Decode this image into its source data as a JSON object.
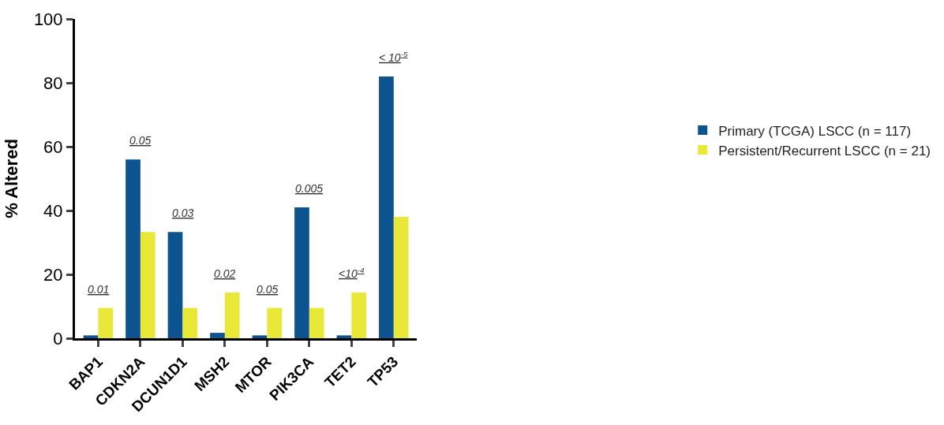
{
  "chart_data": {
    "type": "bar",
    "ylabel": "% Altered",
    "categories": [
      "BAP1",
      "CDKN2A",
      "DCUN1D1",
      "MSH2",
      "MTOR",
      "PIK3CA",
      "TET2",
      "TP53"
    ],
    "series": [
      {
        "name": "Primary (TCGA) LSCC (n = 117)",
        "color": "#0c5390",
        "values": [
          0.9,
          56,
          33.3,
          1.7,
          0.9,
          41,
          0.9,
          82
        ]
      },
      {
        "name": "Persistent/Recurrent LSCC (n = 21)",
        "color": "#e9e838",
        "values": [
          9.5,
          33.3,
          9.5,
          14.3,
          9.5,
          9.5,
          14.3,
          38
        ]
      }
    ],
    "ylim": [
      0,
      100
    ],
    "yticks": [
      0,
      20,
      40,
      60,
      80,
      100
    ],
    "legend": "right",
    "annotations": [
      "0.01",
      "0.05",
      "0.03",
      "0.02",
      "0.05",
      "0.005",
      "<10$^{-4}$",
      "< 10$^{-5}$"
    ]
  }
}
